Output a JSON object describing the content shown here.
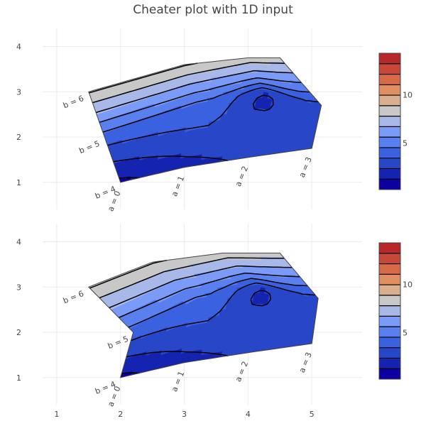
{
  "chart_data": {
    "type": "carpet-contour",
    "title": "Cheater plot with 1D input",
    "colorscale": [
      "#0c00a0",
      "#1524b0",
      "#2846c8",
      "#3a62e0",
      "#5a80f0",
      "#7a9cf8",
      "#a8b8e8",
      "#c8c8c8",
      "#d8b090",
      "#e09060",
      "#d86a48",
      "#c84838",
      "#b82828"
    ],
    "colorbar_ticks": [
      5,
      10
    ],
    "z_range": [
      0.2,
      14.3
    ],
    "a_values": [
      0,
      1,
      2,
      3
    ],
    "b_values": [
      4,
      5,
      6
    ],
    "carpet_labels": {
      "a": [
        "a = 0",
        "a = 1",
        "a = 2",
        "a = 3"
      ],
      "b": [
        "b = 4",
        "b = 5",
        "b = 6"
      ]
    },
    "z_values": [
      [
        1,
        1.96,
        2.56,
        3.0625
      ],
      [
        4,
        4.41,
        4,
        3.0625
      ],
      [
        9,
        9,
        8.41,
        8.41
      ]
    ],
    "subplots": [
      {
        "name": "smooth",
        "xrange": [
          0.5,
          5.9
        ],
        "yrange": [
          0.4,
          4.4
        ],
        "yticks": [
          1,
          2,
          3,
          4
        ],
        "xticks": [],
        "grid": true,
        "carpet_x": [
          [
            2,
            3,
            4,
            5
          ],
          [
            1.75,
            3.2,
            4.25,
            5.15
          ],
          [
            1.5,
            3,
            4,
            4.5
          ]
        ],
        "carpet_y": [
          [
            1,
            1.33,
            1.55,
            1.75
          ],
          [
            2,
            2.75,
            3.0,
            2.7
          ],
          [
            3,
            3.6,
            3.75,
            3.75
          ]
        ]
      },
      {
        "name": "linear",
        "xrange": [
          0.5,
          5.9
        ],
        "yrange": [
          0.4,
          4.4
        ],
        "yticks": [
          1,
          2,
          3,
          4
        ],
        "xticks": [
          1,
          2,
          3,
          4,
          5
        ],
        "grid": true,
        "carpet_x": [
          [
            2,
            3,
            4,
            5
          ],
          [
            2.2,
            3.2,
            4.2,
            5.1
          ],
          [
            1.5,
            2.5,
            3.6,
            4.5
          ]
        ],
        "carpet_y": [
          [
            1,
            1.33,
            1.55,
            1.75
          ],
          [
            2.0,
            2.75,
            3.0,
            2.75
          ],
          [
            3,
            3.55,
            3.75,
            3.75
          ]
        ]
      }
    ]
  }
}
